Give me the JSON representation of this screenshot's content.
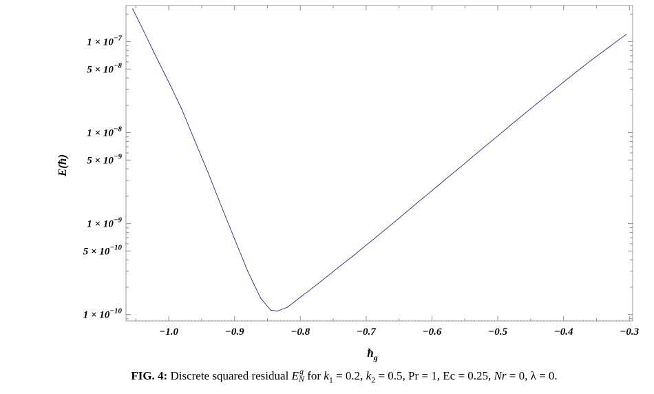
{
  "chart_data": {
    "type": "line",
    "title": "",
    "xlabel": "ħ_g",
    "ylabel": "E(ħ)",
    "x_scale": "linear",
    "y_scale": "log",
    "xlim": [
      -1.065,
      -0.295
    ],
    "ylim": [
      8.5e-11,
      2.5e-07
    ],
    "x_ticks": [
      {
        "value": -1.0,
        "label": "−1.0"
      },
      {
        "value": -0.9,
        "label": "−0.9"
      },
      {
        "value": -0.8,
        "label": "−0.8"
      },
      {
        "value": -0.7,
        "label": "−0.7"
      },
      {
        "value": -0.6,
        "label": "−0.6"
      },
      {
        "value": -0.5,
        "label": "−0.5"
      },
      {
        "value": -0.4,
        "label": "−0.4"
      },
      {
        "value": -0.3,
        "label": "−0.3"
      }
    ],
    "y_ticks": [
      {
        "value": 1e-07,
        "base": "1 × 10",
        "exp": "−7"
      },
      {
        "value": 5e-08,
        "base": "5 × 10",
        "exp": "−8"
      },
      {
        "value": 1e-08,
        "base": "1 × 10",
        "exp": "−8"
      },
      {
        "value": 5e-09,
        "base": "5 × 10",
        "exp": "−9"
      },
      {
        "value": 1e-09,
        "base": "1 × 10",
        "exp": "−9"
      },
      {
        "value": 5e-10,
        "base": "5 × 10",
        "exp": "−10"
      },
      {
        "value": 1e-10,
        "base": "1 × 10",
        "exp": "−10"
      }
    ],
    "series": [
      {
        "color": "#3b3b8f",
        "points": [
          [
            -1.055,
            2.3e-07
          ],
          [
            -1.04,
            1.4e-07
          ],
          [
            -1.02,
            7e-08
          ],
          [
            -1.0,
            3.6e-08
          ],
          [
            -0.98,
            1.8e-08
          ],
          [
            -0.96,
            8e-09
          ],
          [
            -0.94,
            3.6e-09
          ],
          [
            -0.92,
            1.55e-09
          ],
          [
            -0.9,
            6.8e-10
          ],
          [
            -0.88,
            3e-10
          ],
          [
            -0.86,
            1.5e-10
          ],
          [
            -0.845,
            1.12e-10
          ],
          [
            -0.835,
            1.09e-10
          ],
          [
            -0.82,
            1.2e-10
          ],
          [
            -0.8,
            1.55e-10
          ],
          [
            -0.78,
            2e-10
          ],
          [
            -0.76,
            2.6e-10
          ],
          [
            -0.74,
            3.4e-10
          ],
          [
            -0.72,
            4.4e-10
          ],
          [
            -0.7,
            5.8e-10
          ],
          [
            -0.68,
            7.6e-10
          ],
          [
            -0.66,
            1e-09
          ],
          [
            -0.64,
            1.32e-09
          ],
          [
            -0.62,
            1.75e-09
          ],
          [
            -0.6,
            2.3e-09
          ],
          [
            -0.58,
            3.05e-09
          ],
          [
            -0.56,
            4e-09
          ],
          [
            -0.54,
            5.3e-09
          ],
          [
            -0.52,
            7e-09
          ],
          [
            -0.5,
            9.2e-09
          ],
          [
            -0.48,
            1.22e-08
          ],
          [
            -0.46,
            1.6e-08
          ],
          [
            -0.44,
            2.1e-08
          ],
          [
            -0.42,
            2.75e-08
          ],
          [
            -0.4,
            3.6e-08
          ],
          [
            -0.38,
            4.7e-08
          ],
          [
            -0.36,
            6.1e-08
          ],
          [
            -0.34,
            7.8e-08
          ],
          [
            -0.32,
            1e-07
          ],
          [
            -0.305,
            1.2e-07
          ]
        ]
      }
    ],
    "grid": false,
    "frame": true
  },
  "caption": {
    "fig_label": "FIG. 4:",
    "text_1": " Discrete squared residual ",
    "sym_E": "E",
    "sym_E_sub": "N",
    "sym_E_sup": "g",
    "text_2": " for ",
    "k1": "k",
    "k1_sub": "1",
    "k1_val": " = 0.2, ",
    "k2": "k",
    "k2_sub": "2",
    "k2_val": " = 0.5, Pr = 1, Ec = 0.25, ",
    "nr": "Nr",
    "nr_val": " = 0, λ = 0."
  }
}
